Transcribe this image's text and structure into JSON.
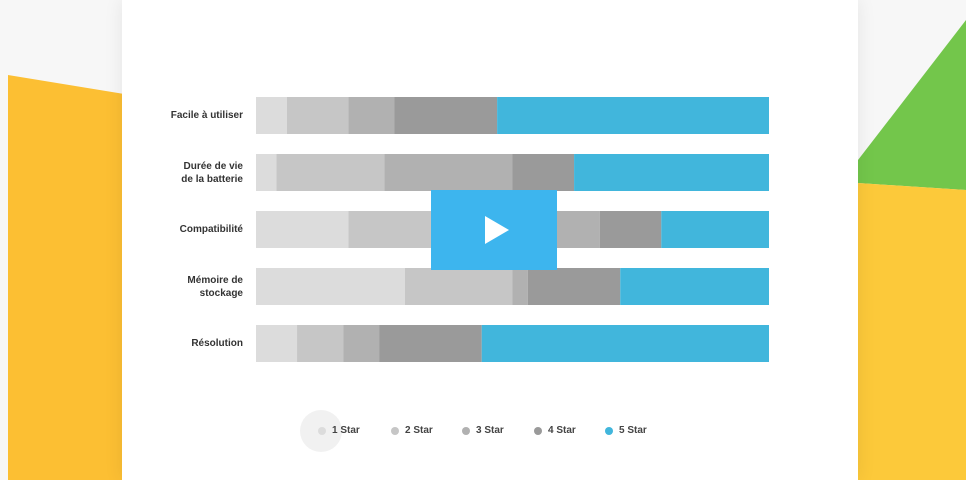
{
  "chart_data": {
    "type": "bar",
    "orientation": "horizontal",
    "stacked": true,
    "categories": [
      "Facile à utiliser",
      "Durée de vie\nde la batterie",
      "Compatibilité",
      "Mémoire de\nstockage",
      "Résolution"
    ],
    "series": [
      {
        "name": "1 Star",
        "color": "#dcdcdc",
        "values": [
          6,
          4,
          18,
          29,
          8
        ]
      },
      {
        "name": "2 Star",
        "color": "#c6c6c6",
        "values": [
          12,
          21,
          24,
          21,
          9
        ]
      },
      {
        "name": "3 Star",
        "color": "#b1b1b1",
        "values": [
          9,
          25,
          25,
          3,
          7
        ]
      },
      {
        "name": "4 Star",
        "color": "#9a9a9a",
        "values": [
          20,
          12,
          12,
          18,
          20
        ]
      },
      {
        "name": "5 Star",
        "color": "#41b6dc",
        "values": [
          53,
          38,
          21,
          29,
          56
        ]
      }
    ],
    "xlim": [
      0,
      100
    ]
  }
}
